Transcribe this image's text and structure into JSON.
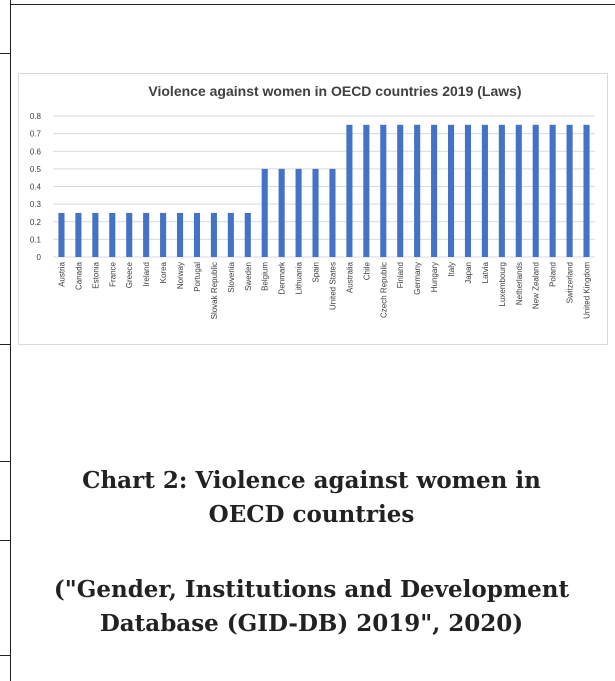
{
  "chart_data": {
    "type": "bar",
    "title": "Violence against women in OECD countries 2019 (Laws)",
    "xlabel": "",
    "ylabel": "",
    "ylim": [
      0,
      0.8
    ],
    "yticks": [
      "0",
      "0.1",
      "0.2",
      "0.3",
      "0.4",
      "0.5",
      "0.6",
      "0.7",
      "0.8"
    ],
    "grid": true,
    "legend": "none",
    "bar_color": "#4472c4",
    "categories": [
      "Austria",
      "Canada",
      "Estonia",
      "France",
      "Greece",
      "Ireland",
      "Korea",
      "Norway",
      "Portugal",
      "Slovak Republic",
      "Slovenia",
      "Sweden",
      "Belgium",
      "Denmark",
      "Lithuania",
      "Spain",
      "United States",
      "Australia",
      "Chile",
      "Czech Republic",
      "Finland",
      "Germany",
      "Hungary",
      "Italy",
      "Japan",
      "Latvia",
      "Luxembourg",
      "Netherlands",
      "New Zealand",
      "Poland",
      "Switzerland",
      "United Kingdom"
    ],
    "values": [
      0.25,
      0.25,
      0.25,
      0.25,
      0.25,
      0.25,
      0.25,
      0.25,
      0.25,
      0.25,
      0.25,
      0.25,
      0.5,
      0.5,
      0.5,
      0.5,
      0.5,
      0.75,
      0.75,
      0.75,
      0.75,
      0.75,
      0.75,
      0.75,
      0.75,
      0.75,
      0.75,
      0.75,
      0.75,
      0.75,
      0.75,
      0.75
    ]
  },
  "caption": {
    "title_line1": "Chart 2: Violence against women in",
    "title_line2": "OECD countries",
    "source_line1": "(\"Gender, Institutions and Development",
    "source_line2": "Database (GID-DB) 2019\", 2020)"
  }
}
